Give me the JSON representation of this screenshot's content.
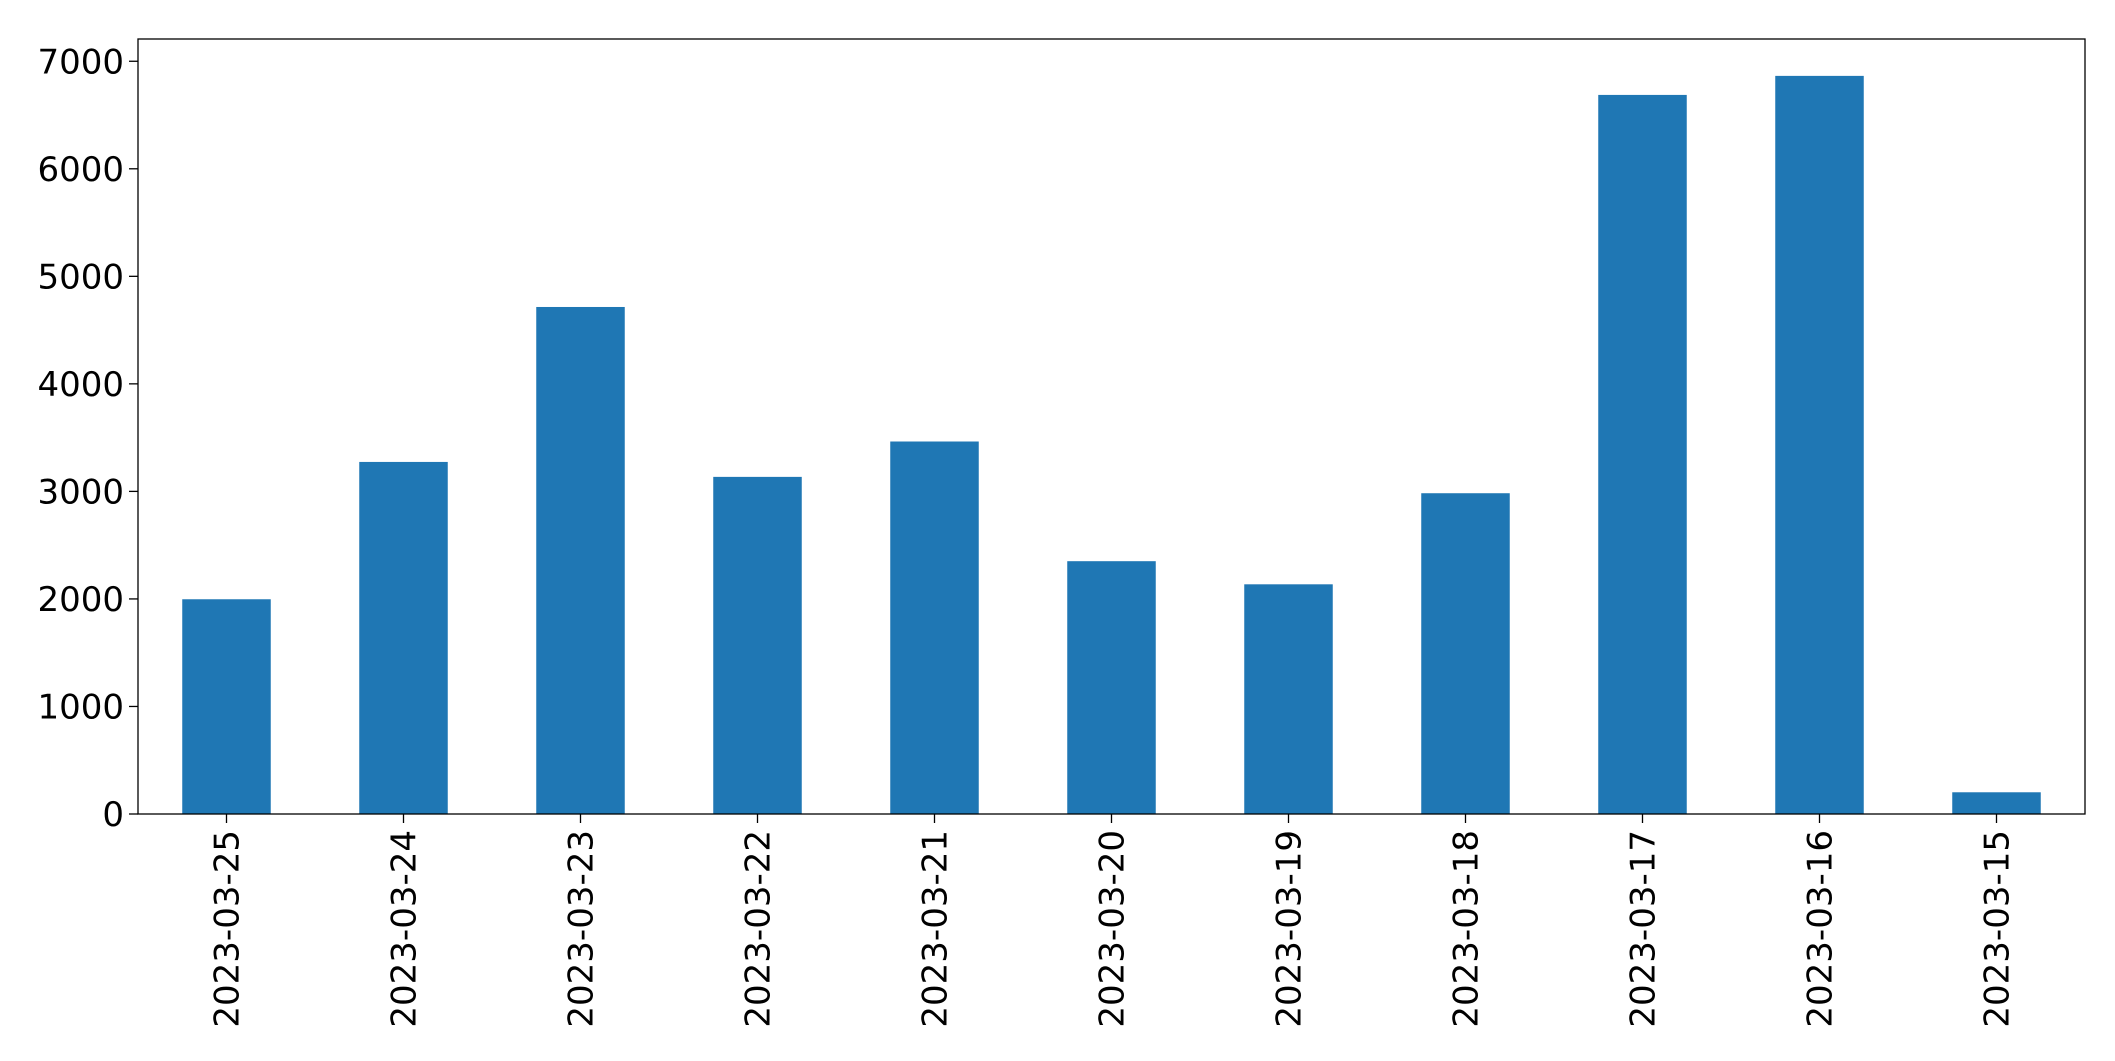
{
  "chart_data": {
    "type": "bar",
    "categories": [
      "2023-03-25",
      "2023-03-24",
      "2023-03-23",
      "2023-03-22",
      "2023-03-21",
      "2023-03-20",
      "2023-03-19",
      "2023-03-18",
      "2023-03-17",
      "2023-03-16",
      "2023-03-15"
    ],
    "values": [
      1997,
      3274,
      4715,
      3135,
      3464,
      2351,
      2136,
      2983,
      6687,
      6864,
      202
    ],
    "color": "#1f77b4",
    "ylim": [
      0,
      7207
    ],
    "yticks": [
      0,
      1000,
      2000,
      3000,
      4000,
      5000,
      6000,
      7000
    ],
    "grid": false
  }
}
